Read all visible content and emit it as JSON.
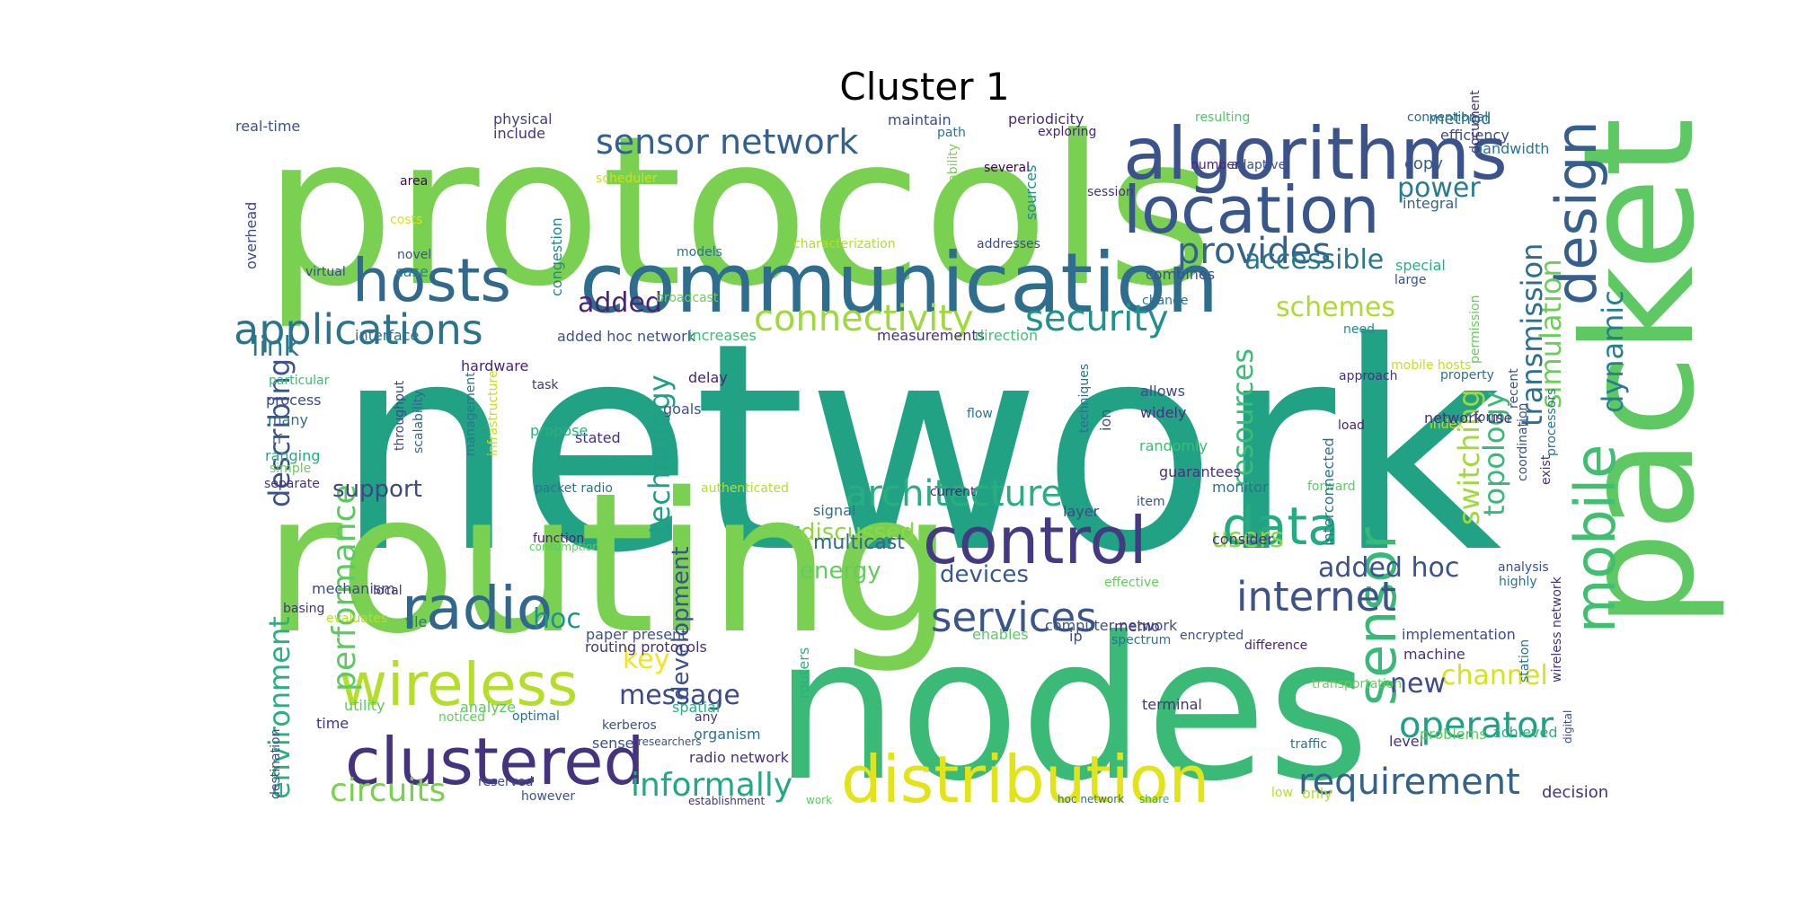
{
  "title": "Cluster 1",
  "words": [
    {
      "text": "network",
      "color": "#22a284"
    },
    {
      "text": "protocols",
      "color": "#7ad151"
    },
    {
      "text": "nodes",
      "color": "#3aba76"
    },
    {
      "text": "routing",
      "color": "#7ad151"
    },
    {
      "text": "packet",
      "color": "#5ec962"
    },
    {
      "text": "communication",
      "color": "#2e6d8e"
    },
    {
      "text": "algorithms",
      "color": "#3b528b"
    },
    {
      "text": "location",
      "color": "#39568c"
    },
    {
      "text": "control",
      "color": "#443983"
    },
    {
      "text": "distribution",
      "color": "#e2e418"
    },
    {
      "text": "clustered",
      "color": "#46337f"
    },
    {
      "text": "wireless",
      "color": "#b5de2b"
    },
    {
      "text": "radio",
      "color": "#31668e"
    },
    {
      "text": "hosts",
      "color": "#31688e"
    },
    {
      "text": "mobile",
      "color": "#42be71"
    },
    {
      "text": "design",
      "color": "#355f8d"
    },
    {
      "text": "sensor",
      "color": "#38b977"
    },
    {
      "text": "data",
      "color": "#25ab82"
    },
    {
      "text": "applications",
      "color": "#2c738e"
    },
    {
      "text": "internet",
      "color": "#3b528b"
    },
    {
      "text": "services",
      "color": "#3a548c"
    },
    {
      "text": "architecture",
      "color": "#29af7f"
    },
    {
      "text": "connectivity",
      "color": "#9fda3a"
    },
    {
      "text": "security",
      "color": "#20928c"
    },
    {
      "text": "provides",
      "color": "#33638d"
    },
    {
      "text": "requirement",
      "color": "#33638d"
    },
    {
      "text": "operator",
      "color": "#1fa088"
    },
    {
      "text": "sensor network",
      "color": "#355f8d"
    },
    {
      "text": "circuits",
      "color": "#7ad151"
    },
    {
      "text": "informally",
      "color": "#22a884"
    },
    {
      "text": "performance",
      "color": "#5ec962"
    },
    {
      "text": "describing",
      "color": "#3b528b"
    },
    {
      "text": "environment",
      "color": "#2ab07f"
    },
    {
      "text": "technology",
      "color": "#1f9e89"
    },
    {
      "text": "resources",
      "color": "#3dbc74"
    },
    {
      "text": "switching",
      "color": "#a0da39"
    },
    {
      "text": "topology",
      "color": "#38b977"
    },
    {
      "text": "simulation",
      "color": "#6ccd5a"
    },
    {
      "text": "transmission",
      "color": "#2e6e8e"
    },
    {
      "text": "dynamic",
      "color": "#277f8e"
    },
    {
      "text": "accessible",
      "color": "#29788e"
    },
    {
      "text": "schemes",
      "color": "#addc30"
    },
    {
      "text": "power",
      "color": "#287c8e"
    },
    {
      "text": "added",
      "color": "#482576"
    },
    {
      "text": "link",
      "color": "#29798e"
    },
    {
      "text": "key",
      "color": "#f1e51d"
    },
    {
      "text": "message",
      "color": "#3e4a89"
    },
    {
      "text": "hoc",
      "color": "#20928c"
    },
    {
      "text": "channel",
      "color": "#d8e219"
    },
    {
      "text": "new",
      "color": "#3e4c8a"
    },
    {
      "text": "added hoc",
      "color": "#3b528b"
    },
    {
      "text": "users",
      "color": "#8ed645"
    },
    {
      "text": "discussed",
      "color": "#8ed645"
    },
    {
      "text": "energy",
      "color": "#65cb5e"
    },
    {
      "text": "devices",
      "color": "#38598c"
    },
    {
      "text": "support",
      "color": "#3f4788"
    },
    {
      "text": "development",
      "color": "#3b528b"
    },
    {
      "text": "multicast",
      "color": "#31688e"
    },
    {
      "text": "real-time",
      "color": "#3b528b"
    },
    {
      "text": "physical",
      "color": "#433e85"
    },
    {
      "text": "include",
      "color": "#46327e"
    },
    {
      "text": "maintain",
      "color": "#3d4d8a"
    },
    {
      "text": "path",
      "color": "#2c728e"
    },
    {
      "text": "exploring",
      "color": "#482576"
    },
    {
      "text": "periodicity",
      "color": "#472d7b"
    },
    {
      "text": "resulting",
      "color": "#54c568"
    },
    {
      "text": "conventional",
      "color": "#306a8e"
    },
    {
      "text": "method",
      "color": "#2a768e"
    },
    {
      "text": "efficiency",
      "color": "#3e4a89"
    },
    {
      "text": "bandwidth",
      "color": "#2c738e"
    },
    {
      "text": "copy",
      "color": "#365c8d"
    },
    {
      "text": "integral",
      "color": "#33638d"
    },
    {
      "text": "adaptive",
      "color": "#39558c"
    },
    {
      "text": "number",
      "color": "#482878"
    },
    {
      "text": "document",
      "color": "#46337f"
    },
    {
      "text": "several",
      "color": "#440154"
    },
    {
      "text": "session",
      "color": "#46327e"
    },
    {
      "text": "scheduler",
      "color": "#c8e020"
    },
    {
      "text": "area",
      "color": "#450559"
    },
    {
      "text": "costs",
      "color": "#dde318"
    },
    {
      "text": "novel",
      "color": "#3b528b"
    },
    {
      "text": "virtual",
      "color": "#3e4a89"
    },
    {
      "text": "case",
      "color": "#26828e"
    },
    {
      "text": "models",
      "color": "#2d708e"
    },
    {
      "text": "characterization",
      "color": "#b5de2b"
    },
    {
      "text": "addresses",
      "color": "#3e4a89"
    },
    {
      "text": "combines",
      "color": "#3b528b"
    },
    {
      "text": "change",
      "color": "#2c738e"
    },
    {
      "text": "special",
      "color": "#2ab07f"
    },
    {
      "text": "large",
      "color": "#3b528b"
    },
    {
      "text": "overhead",
      "color": "#3e4a89"
    },
    {
      "text": "congestion",
      "color": "#26828e"
    },
    {
      "text": "capability",
      "color": "#7ad151"
    },
    {
      "text": "sources",
      "color": "#228c8d"
    },
    {
      "text": "broadcast",
      "color": "#6ccd5a"
    },
    {
      "text": "interface",
      "color": "#2d708e"
    },
    {
      "text": "added hoc network",
      "color": "#3b528b"
    },
    {
      "text": "increases",
      "color": "#3dbc74"
    },
    {
      "text": "measurements",
      "color": "#46337f"
    },
    {
      "text": "direction",
      "color": "#44bf70"
    },
    {
      "text": "hardware",
      "color": "#482576"
    },
    {
      "text": "need",
      "color": "#238a8d"
    },
    {
      "text": "mobile hosts",
      "color": "#c2df23"
    },
    {
      "text": "property",
      "color": "#2c728e"
    },
    {
      "text": "permission",
      "color": "#65cb5e"
    },
    {
      "text": "particular",
      "color": "#3dbc74"
    },
    {
      "text": "process",
      "color": "#3e4a89"
    },
    {
      "text": "many",
      "color": "#2d708e"
    },
    {
      "text": "rf",
      "color": "#3b528b"
    },
    {
      "text": "ranging",
      "color": "#25ab82"
    },
    {
      "text": "simple",
      "color": "#6ccd5a"
    },
    {
      "text": "separate",
      "color": "#46327e"
    },
    {
      "text": "throughput",
      "color": "#3e4a89"
    },
    {
      "text": "scalability",
      "color": "#31688e"
    },
    {
      "text": "management",
      "color": "#2a768e"
    },
    {
      "text": "infrastructure",
      "color": "#c2df23"
    },
    {
      "text": "task",
      "color": "#46327e"
    },
    {
      "text": "delay",
      "color": "#482576"
    },
    {
      "text": "goals",
      "color": "#3b528b"
    },
    {
      "text": "stated",
      "color": "#46337f"
    },
    {
      "text": "propose",
      "color": "#2ab07f"
    },
    {
      "text": "flow",
      "color": "#2c728e"
    },
    {
      "text": "techniques",
      "color": "#2e6e8e"
    },
    {
      "text": "ion",
      "color": "#3b528b"
    },
    {
      "text": "allows",
      "color": "#3e4a89"
    },
    {
      "text": "widely",
      "color": "#46327e"
    },
    {
      "text": "approach",
      "color": "#46327e"
    },
    {
      "text": "load",
      "color": "#482576"
    },
    {
      "text": "index",
      "color": "#c2df23"
    },
    {
      "text": "network use",
      "color": "#46327e"
    },
    {
      "text": "form",
      "color": "#3e4a89"
    },
    {
      "text": "recent",
      "color": "#3b528b"
    },
    {
      "text": "processors",
      "color": "#2c738e"
    },
    {
      "text": "coordination",
      "color": "#3b528b"
    },
    {
      "text": "exist",
      "color": "#46327e"
    },
    {
      "text": "randomly",
      "color": "#3dbc74"
    },
    {
      "text": "guarantees",
      "color": "#46327e"
    },
    {
      "text": "monitor",
      "color": "#2d708e"
    },
    {
      "text": "forward",
      "color": "#5ec962"
    },
    {
      "text": "packet radio",
      "color": "#2c728e"
    },
    {
      "text": "authenticated",
      "color": "#b5de2b"
    },
    {
      "text": "current",
      "color": "#482576"
    },
    {
      "text": "signal",
      "color": "#2c728e"
    },
    {
      "text": "layer",
      "color": "#3e4a89"
    },
    {
      "text": "item",
      "color": "#3b528b"
    },
    {
      "text": "function",
      "color": "#482576"
    },
    {
      "text": "consumption",
      "color": "#5ec962"
    },
    {
      "text": "consider",
      "color": "#46327e"
    },
    {
      "text": "analysis",
      "color": "#3b528b"
    },
    {
      "text": "highly",
      "color": "#2c738e"
    },
    {
      "text": "mechanism",
      "color": "#3e4a89"
    },
    {
      "text": "local",
      "color": "#46327e"
    },
    {
      "text": "effective",
      "color": "#65cb5e"
    },
    {
      "text": "basing",
      "color": "#46327e"
    },
    {
      "text": "evaluates",
      "color": "#b5de2b"
    },
    {
      "text": "file",
      "color": "#2c728e"
    },
    {
      "text": "paper present",
      "color": "#3b528b"
    },
    {
      "text": "routing protocols",
      "color": "#46327e"
    },
    {
      "text": "enables",
      "color": "#5ec962"
    },
    {
      "text": "computer network",
      "color": "#3b528b"
    },
    {
      "text": "memo",
      "color": "#46327e"
    },
    {
      "text": "ip",
      "color": "#3e4a89"
    },
    {
      "text": "spectrum",
      "color": "#2c728e"
    },
    {
      "text": "encrypted",
      "color": "#3b528b"
    },
    {
      "text": "difference",
      "color": "#482576"
    },
    {
      "text": "interconnected",
      "color": "#2c728e"
    },
    {
      "text": "implementation",
      "color": "#3e4a89"
    },
    {
      "text": "machine",
      "color": "#46327e"
    },
    {
      "text": "transportation",
      "color": "#6ccd5a"
    },
    {
      "text": "station",
      "color": "#2c728e"
    },
    {
      "text": "wireless network",
      "color": "#46327e"
    },
    {
      "text": "destination",
      "color": "#3e4a89"
    },
    {
      "text": "utility",
      "color": "#5ec962"
    },
    {
      "text": "time",
      "color": "#46337f"
    },
    {
      "text": "analyze",
      "color": "#5ec962"
    },
    {
      "text": "noticed",
      "color": "#65cb5e"
    },
    {
      "text": "optimal",
      "color": "#2c728e"
    },
    {
      "text": "kerberos",
      "color": "#3b528b"
    },
    {
      "text": "spatial",
      "color": "#2ab07f"
    },
    {
      "text": "any",
      "color": "#46327e"
    },
    {
      "text": "researchers",
      "color": "#3b528b"
    },
    {
      "text": "routers",
      "color": "#2ab07f"
    },
    {
      "text": "terminal",
      "color": "#46327e"
    },
    {
      "text": "traffic",
      "color": "#2c728e"
    },
    {
      "text": "level",
      "color": "#46327e"
    },
    {
      "text": "problems",
      "color": "#5ec962"
    },
    {
      "text": "achieved",
      "color": "#2ab07f"
    },
    {
      "text": "digital",
      "color": "#3e4a89"
    },
    {
      "text": "sense",
      "color": "#3b528b"
    },
    {
      "text": "organism",
      "color": "#2c728e"
    },
    {
      "text": "radio network",
      "color": "#46327e"
    },
    {
      "text": "reserved",
      "color": "#3e4a89"
    },
    {
      "text": "however",
      "color": "#3b528b"
    },
    {
      "text": "establishment",
      "color": "#46327e"
    },
    {
      "text": "work",
      "color": "#5ec962"
    },
    {
      "text": "hoc network",
      "color": "#2c728e"
    },
    {
      "text": "share",
      "color": "#2ab07f"
    },
    {
      "text": "low",
      "color": "#b5de2b"
    },
    {
      "text": "only",
      "color": "#b5de2b"
    },
    {
      "text": "decision",
      "color": "#46327e"
    }
  ]
}
